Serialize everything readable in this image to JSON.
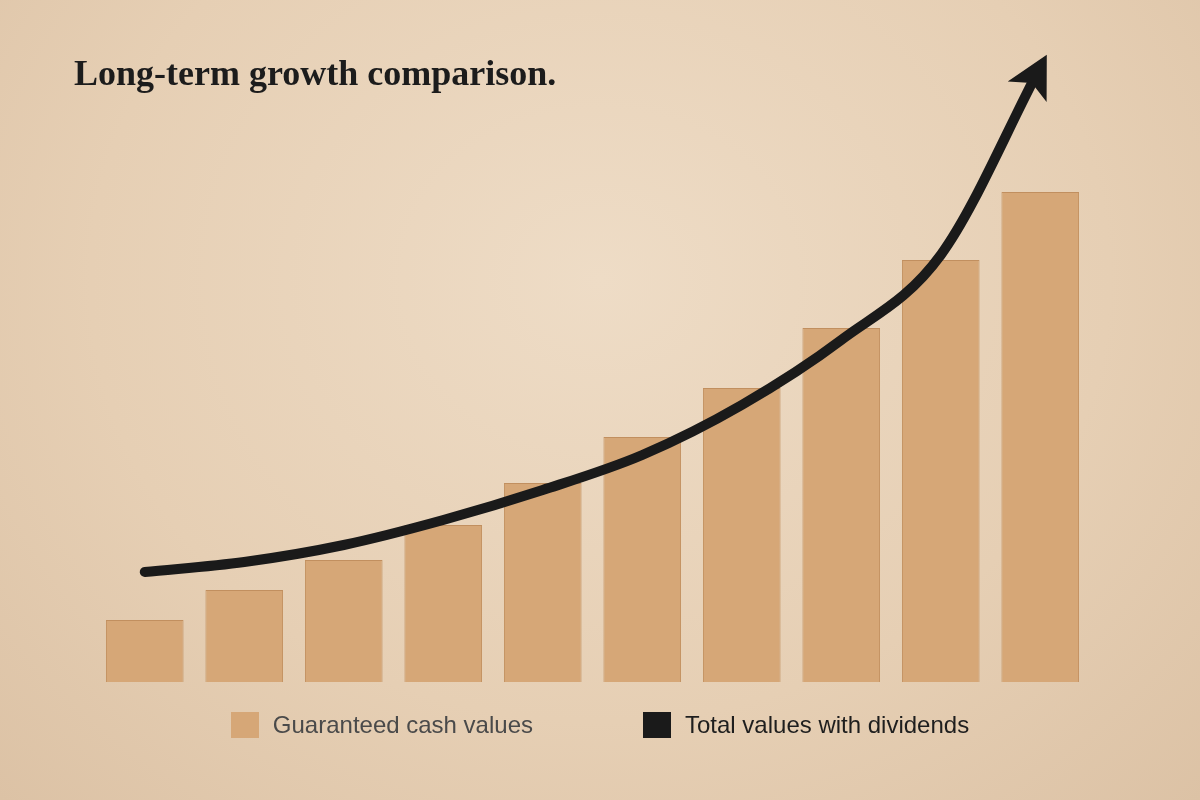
{
  "chart_data": {
    "type": "bar",
    "title": "Long-term growth comparison.",
    "categories": [
      null,
      null,
      null,
      null,
      null,
      null,
      null,
      null,
      null,
      null
    ],
    "series": [
      {
        "name": "Guaranteed cash values",
        "type": "bar",
        "color": "#d6a777",
        "values": [
          62,
          92,
          122,
          157,
          199,
          245,
          294,
          354,
          422,
          490
        ]
      },
      {
        "name": "Total values with dividends",
        "type": "line",
        "color": "#1a1a1a",
        "values": [
          110,
          120,
          137,
          162,
          192,
          227,
          277,
          342,
          427,
          615
        ]
      }
    ],
    "ylim": [
      0,
      650
    ],
    "grid": false,
    "tick_labels": false,
    "legend": "bottom"
  }
}
